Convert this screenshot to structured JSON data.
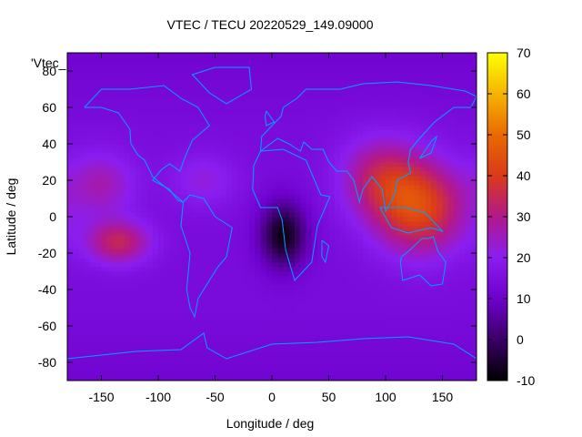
{
  "chart_data": {
    "type": "heatmap",
    "title": "VTEC / TECU 20220529_149.09000",
    "xlabel": "Longitude / deg",
    "ylabel": "Latitude / deg",
    "key_label": "'Vtec_",
    "xlim": [
      -180,
      180
    ],
    "ylim": [
      -90,
      90
    ],
    "xticks": [
      -150,
      -100,
      -50,
      0,
      50,
      100,
      150
    ],
    "yticks": [
      -80,
      -60,
      -40,
      -20,
      0,
      20,
      40,
      60,
      80
    ],
    "colorbar": {
      "range": [
        -10,
        70
      ],
      "ticks": [
        -10,
        0,
        10,
        20,
        30,
        40,
        50,
        60,
        70
      ],
      "palette": [
        "#000000",
        "#3a0066",
        "#6e00cc",
        "#8a1ef0",
        "#b2188a",
        "#d93a1a",
        "#ea6a00",
        "#f5b400",
        "#ffff00"
      ]
    },
    "grid": {
      "lon_step": 5,
      "lat_step": 2.5,
      "description": "VTEC values in TECU on a regular longitude/latitude grid",
      "features": [
        {
          "lon": 130,
          "lat": 5,
          "value": 42,
          "sigma_lon": 40,
          "sigma_lat": 25
        },
        {
          "lon": 95,
          "lat": 22,
          "value": 30,
          "sigma_lon": 35,
          "sigma_lat": 22
        },
        {
          "lon": -135,
          "lat": -14,
          "value": 34,
          "sigma_lon": 28,
          "sigma_lat": 12
        },
        {
          "lon": -150,
          "lat": 18,
          "value": 26,
          "sigma_lon": 30,
          "sigma_lat": 18
        },
        {
          "lon": -60,
          "lat": 20,
          "value": 22,
          "sigma_lon": 30,
          "sigma_lat": 15
        },
        {
          "lon": 10,
          "lat": -10,
          "value": -8,
          "sigma_lon": 20,
          "sigma_lat": 18
        }
      ],
      "background": 14
    }
  },
  "coastline_color": "#00a0ff"
}
